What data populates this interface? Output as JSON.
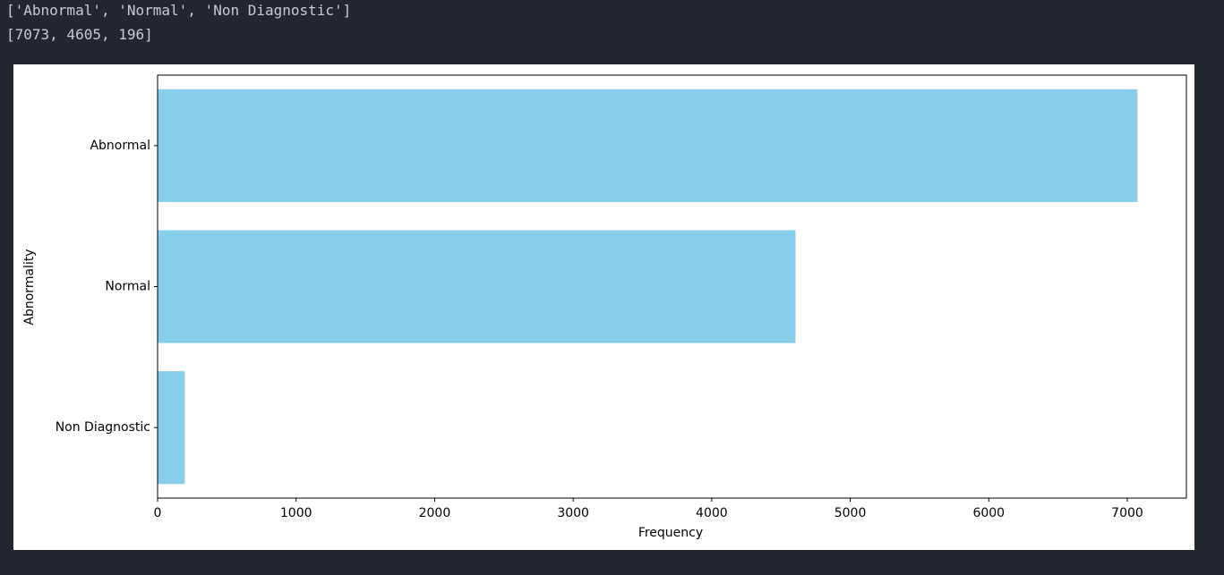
{
  "output_lines": [
    "['Abnormal', 'Normal', 'Non Diagnostic']",
    "[7073, 4605, 196]"
  ],
  "chart_data": {
    "type": "barh",
    "xlabel": "Frequency",
    "ylabel": "Abnormality",
    "categories": [
      "Abnormal",
      "Normal",
      "Non Diagnostic"
    ],
    "values": [
      7073,
      4605,
      196
    ],
    "color": "#87ceeb",
    "xlim": [
      0,
      7426.65
    ],
    "xticks": [
      0,
      1000,
      2000,
      3000,
      4000,
      5000,
      6000,
      7000
    ],
    "grid": false
  }
}
